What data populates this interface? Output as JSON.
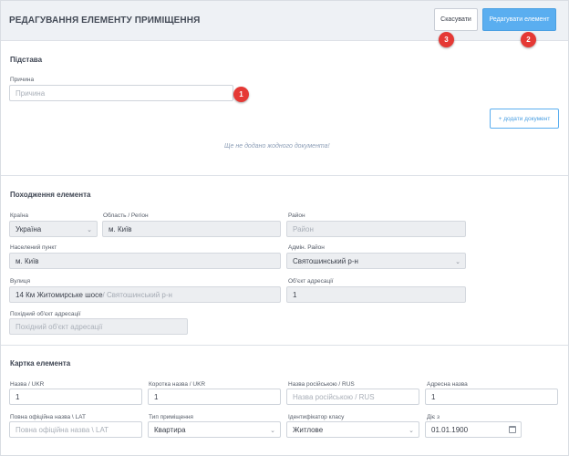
{
  "header": {
    "title": "РЕДАГУВАННЯ ЕЛЕМЕНТУ ПРИМІЩЕННЯ",
    "cancel_label": "Скасувати",
    "edit_label": "Редагувати елемент"
  },
  "badges": {
    "b1": "1",
    "b2": "2",
    "b3": "3"
  },
  "basis": {
    "title": "Підстава",
    "reason_label": "Причина",
    "reason_placeholder": "Причина",
    "add_doc_label": "+ додати документ",
    "empty_msg": "Ще не додано жодного документа!"
  },
  "origin": {
    "title": "Походження елемента",
    "country_label": "Країна",
    "country_value": "Україна",
    "region_label": "Область / Регіон",
    "region_value": "м. Київ",
    "district_label": "Район",
    "district_placeholder": "Район",
    "settlement_label": "Населений пункт",
    "settlement_value": "м. Київ",
    "adm_district_label": "Адмін. Район",
    "adm_district_value": "Святошинський р-н",
    "street_label": "Вулиця",
    "street_value": "14 Км Житомирське шосе",
    "street_sub": " / Святошинський р-н",
    "addr_obj_label": "Об'єкт адресації",
    "addr_obj_value": "1",
    "derived_label": "Похідний об'єкт адресації",
    "derived_placeholder": "Похідний об'єкт адресації"
  },
  "card": {
    "title": "Картка елемента",
    "name_ukr_label": "Назва / UKR",
    "name_ukr_value": "1",
    "short_label": "Коротка назва / UKR",
    "short_value": "1",
    "rus_label": "Назва російською / RUS",
    "rus_placeholder": "Назва російською / RUS",
    "addr_name_label": "Адресна назва",
    "addr_name_value": "1",
    "lat_label": "Повна офіційна назва \\ LAT",
    "lat_placeholder": "Повна офіційна назва \\ LAT",
    "type_label": "Тип приміщення",
    "type_value": "Квартира",
    "class_label": "Ідентифікатор класу",
    "class_value": "Житлове",
    "valid_label": "Діє з",
    "valid_value": "01.01.1900"
  },
  "colors": {
    "accent": "#5aaef0",
    "badge": "#e53935"
  }
}
